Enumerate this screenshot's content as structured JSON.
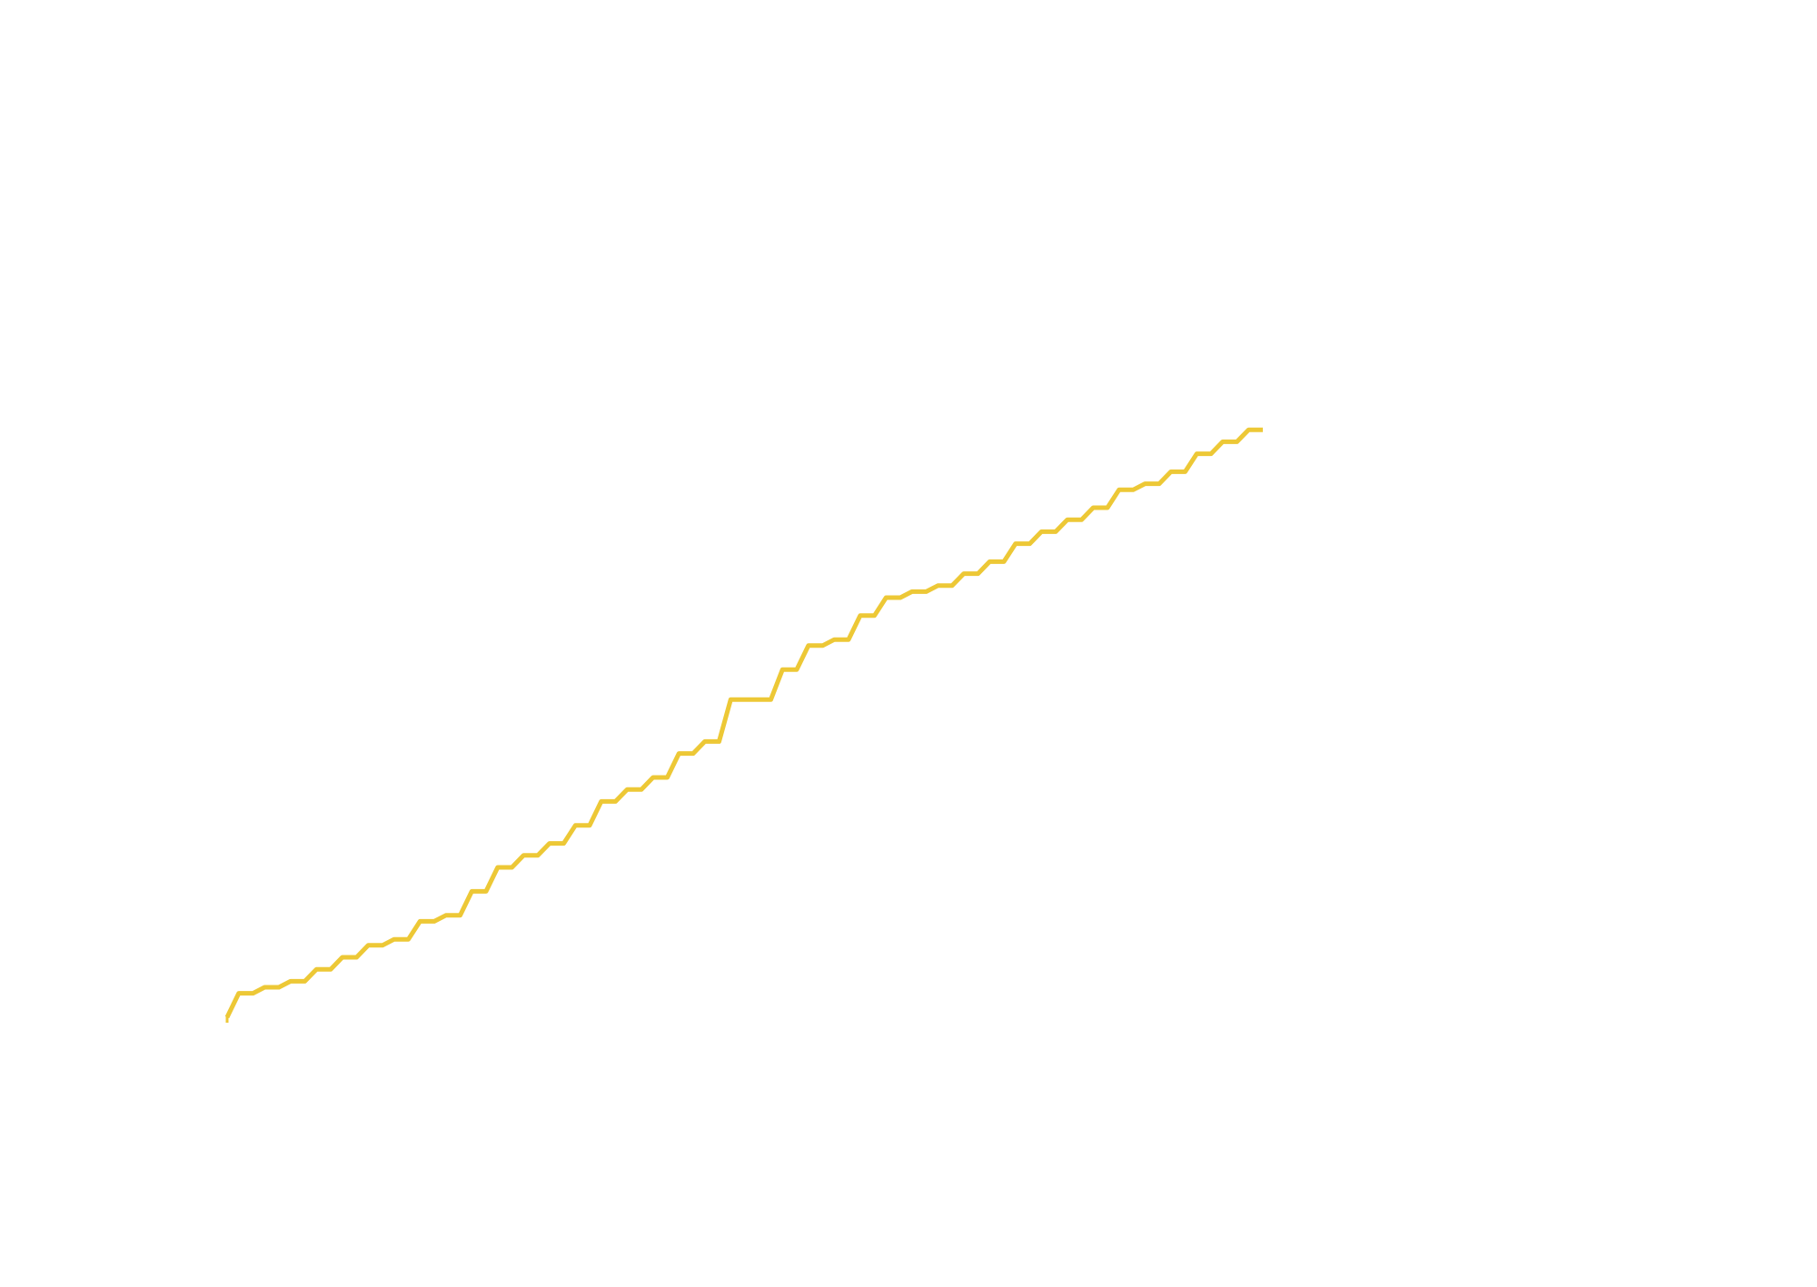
{
  "chart_data": {
    "type": "line",
    "title": "",
    "xlabel": "",
    "ylabel": "",
    "axes_visible": false,
    "grid": false,
    "legend": "none",
    "xlim": [
      0,
      100
    ],
    "ylim": [
      0,
      100
    ],
    "series": [
      {
        "color": "#edc836",
        "x": [
          0,
          2.5,
          5,
          7.5,
          10,
          12.5,
          15,
          17.5,
          20,
          22.5,
          25,
          27.5,
          30,
          32.5,
          35,
          37.5,
          40,
          42.5,
          45,
          47.5,
          50,
          52.5,
          55,
          57.5,
          60,
          62.5,
          65,
          67.5,
          70,
          72.5,
          75,
          77.5,
          80,
          82.5,
          85,
          87.5,
          90,
          92.5,
          95,
          97.5,
          100
        ],
        "y": [
          0,
          4,
          5,
          6,
          8,
          10,
          12,
          13,
          16,
          17,
          21,
          25,
          27,
          29,
          32,
          36,
          38,
          40,
          44,
          46,
          53,
          53,
          58,
          62,
          63,
          67,
          70,
          71,
          72,
          74,
          76,
          79,
          81,
          83,
          85,
          88,
          89,
          91,
          94,
          96,
          98
        ]
      }
    ]
  }
}
